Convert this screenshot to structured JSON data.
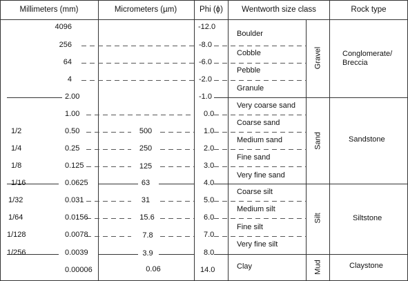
{
  "headers": {
    "millimeters": "Millimeters (mm)",
    "micrometers": "Micrometers (µm)",
    "phi": "Phi (ϕ)",
    "wentworth": "Wentworth size class",
    "rock_type": "Rock type"
  },
  "fractions": [
    "1/2",
    "1/4",
    "1/8",
    "1/16",
    "1/32",
    "1/64",
    "1/128",
    "1/256"
  ],
  "millimeters": [
    "4096",
    "256",
    "64",
    "4",
    "2.00",
    "1.00",
    "0.50",
    "0.25",
    "0.125",
    "0.0625",
    "0.031",
    "0.0156",
    "0.0078",
    "0.0039",
    "0.00006"
  ],
  "micrometers": [
    "500",
    "250",
    "125",
    "63",
    "31",
    "15.6",
    "7.8",
    "3.9",
    "0.06"
  ],
  "phi": [
    "-12.0",
    "-8.0",
    "-6.0",
    "-2.0",
    "-1.0",
    "0.0",
    "1.0",
    "2.0",
    "3.0",
    "4.0",
    "5.0",
    "6.0",
    "7.0",
    "8.0",
    "14.0"
  ],
  "size_classes": [
    "Boulder",
    "Cobble",
    "Pebble",
    "Granule",
    "Very coarse sand",
    "Coarse sand",
    "Medium sand",
    "Fine sand",
    "Very fine sand",
    "Coarse silt",
    "Medium silt",
    "Fine silt",
    "Very fine silt",
    "Clay"
  ],
  "groups": [
    "Gravel",
    "Sand",
    "Silt",
    "Mud"
  ],
  "rock_types": [
    "Conglomerate/\nBreccia",
    "Sandstone",
    "Siltstone",
    "Claystone"
  ]
}
